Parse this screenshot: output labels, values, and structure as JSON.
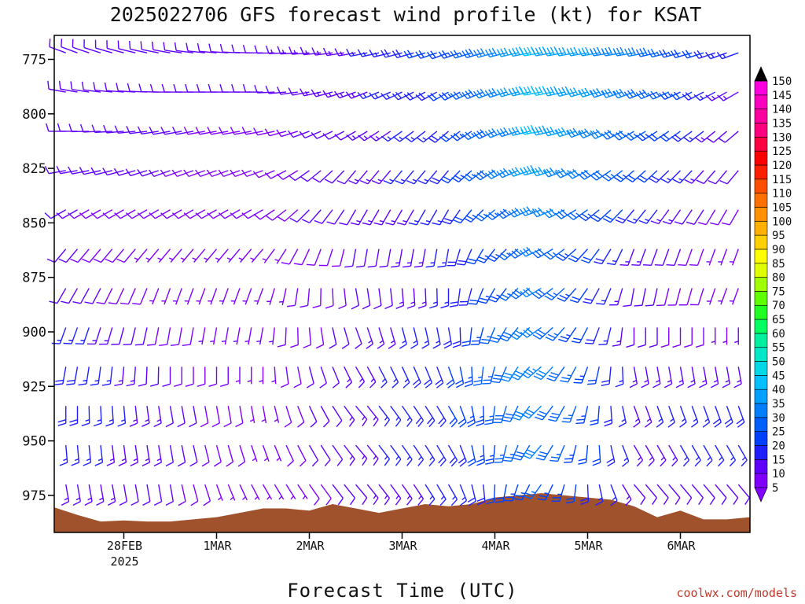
{
  "chart_data": {
    "type": "wind-barb",
    "title": "2025022706 GFS forecast wind profile (kt) for KSAT",
    "xlabel": "Forecast Time (UTC)",
    "ylabel": "",
    "y_axis": {
      "unit": "hPa",
      "inverted": true,
      "ylim": [
        764,
        992
      ],
      "ticks": [
        775,
        800,
        825,
        850,
        875,
        900,
        925,
        950,
        975
      ]
    },
    "x_axis": {
      "start": "2025-02-27T06:00Z",
      "end": "2025-03-06T18:00Z",
      "ticks": [
        {
          "date": "2025-02-28",
          "label": "28FEB",
          "sublabel": "2025"
        },
        {
          "date": "2025-03-01",
          "label": "1MAR",
          "sublabel": ""
        },
        {
          "date": "2025-03-02",
          "label": "2MAR",
          "sublabel": ""
        },
        {
          "date": "2025-03-03",
          "label": "3MAR",
          "sublabel": ""
        },
        {
          "date": "2025-03-04",
          "label": "4MAR",
          "sublabel": ""
        },
        {
          "date": "2025-03-05",
          "label": "5MAR",
          "sublabel": ""
        },
        {
          "date": "2025-03-06",
          "label": "6MAR",
          "sublabel": ""
        }
      ]
    },
    "colorbar": {
      "unit": "kt",
      "levels": [
        5,
        10,
        15,
        20,
        25,
        30,
        35,
        40,
        45,
        50,
        55,
        60,
        65,
        70,
        75,
        80,
        85,
        90,
        95,
        100,
        105,
        110,
        115,
        120,
        125,
        130,
        135,
        140,
        145,
        150
      ],
      "colors": [
        "#8000ff",
        "#6000ff",
        "#2020ff",
        "#0040ff",
        "#0060ff",
        "#0080ff",
        "#00a0ff",
        "#00c0ff",
        "#00d8e8",
        "#00e8c8",
        "#00f0a0",
        "#00ff60",
        "#20ff20",
        "#60ff00",
        "#a0ff00",
        "#e0ff00",
        "#ffff00",
        "#ffd000",
        "#ffb000",
        "#ff9000",
        "#ff7000",
        "#ff5000",
        "#ff2000",
        "#ff0000",
        "#ff0040",
        "#ff0080",
        "#ff00a0",
        "#ff00c0",
        "#ff00e0",
        "#ff00ff"
      ]
    },
    "profile": {
      "levels_hPa": [
        772,
        790,
        808,
        826,
        844,
        862,
        880,
        898,
        916,
        934,
        952,
        970
      ],
      "days": [
        {
          "date": "2025-02-27T12:00Z",
          "speeds": [
            12,
            12,
            11,
            11,
            10,
            10,
            12,
            16,
            18,
            18,
            16,
            14
          ],
          "dirs": [
            290,
            280,
            270,
            260,
            240,
            220,
            210,
            200,
            190,
            180,
            175,
            170
          ]
        },
        {
          "date": "2025-02-28T12:00Z",
          "speeds": [
            12,
            12,
            11,
            10,
            8,
            6,
            6,
            8,
            10,
            12,
            12,
            10
          ],
          "dirs": [
            280,
            270,
            260,
            250,
            240,
            220,
            200,
            190,
            180,
            170,
            170,
            170
          ]
        },
        {
          "date": "2025-03-01T12:00Z",
          "speeds": [
            12,
            10,
            8,
            8,
            8,
            6,
            6,
            6,
            6,
            6,
            6,
            4
          ],
          "dirs": [
            270,
            270,
            260,
            250,
            240,
            220,
            200,
            190,
            180,
            170,
            160,
            150
          ]
        },
        {
          "date": "2025-03-02T12:00Z",
          "speeds": [
            14,
            14,
            12,
            12,
            12,
            10,
            10,
            12,
            14,
            14,
            14,
            12
          ],
          "dirs": [
            260,
            250,
            240,
            220,
            210,
            190,
            170,
            160,
            150,
            140,
            140,
            140
          ]
        },
        {
          "date": "2025-03-03T12:00Z",
          "speeds": [
            22,
            20,
            18,
            18,
            16,
            16,
            16,
            18,
            20,
            20,
            18,
            16
          ],
          "dirs": [
            250,
            240,
            230,
            220,
            210,
            190,
            180,
            170,
            160,
            150,
            150,
            150
          ]
        },
        {
          "date": "2025-03-04T12:00Z",
          "speeds": [
            40,
            42,
            40,
            38,
            34,
            30,
            30,
            32,
            34,
            32,
            30,
            26
          ],
          "dirs": [
            260,
            260,
            260,
            255,
            250,
            245,
            240,
            235,
            230,
            225,
            220,
            215
          ]
        },
        {
          "date": "2025-03-05T12:00Z",
          "speeds": [
            32,
            32,
            28,
            24,
            18,
            14,
            12,
            12,
            14,
            14,
            14,
            12
          ],
          "dirs": [
            260,
            250,
            240,
            230,
            220,
            200,
            190,
            180,
            170,
            160,
            150,
            140
          ]
        },
        {
          "date": "2025-03-06T12:00Z",
          "speeds": [
            16,
            14,
            12,
            10,
            8,
            6,
            6,
            6,
            14,
            18,
            16,
            12
          ],
          "dirs": [
            250,
            240,
            230,
            220,
            210,
            200,
            200,
            180,
            170,
            160,
            150,
            140
          ]
        }
      ]
    },
    "surface_pressure_hPa": [
      [
        "2025-02-27T06:00Z",
        980.5
      ],
      [
        "2025-02-27T12:00Z",
        984
      ],
      [
        "2025-02-27T18:00Z",
        987
      ],
      [
        "2025-02-28T00:00Z",
        986.5
      ],
      [
        "2025-02-28T06:00Z",
        987
      ],
      [
        "2025-02-28T12:00Z",
        987
      ],
      [
        "2025-02-28T18:00Z",
        986
      ],
      [
        "2025-03-01T00:00Z",
        985
      ],
      [
        "2025-03-01T06:00Z",
        983
      ],
      [
        "2025-03-01T12:00Z",
        981
      ],
      [
        "2025-03-01T18:00Z",
        981
      ],
      [
        "2025-03-02T00:00Z",
        982
      ],
      [
        "2025-03-02T06:00Z",
        979
      ],
      [
        "2025-03-02T12:00Z",
        981
      ],
      [
        "2025-03-02T18:00Z",
        983
      ],
      [
        "2025-03-03T00:00Z",
        981
      ],
      [
        "2025-03-03T06:00Z",
        979
      ],
      [
        "2025-03-03T12:00Z",
        980
      ],
      [
        "2025-03-03T18:00Z",
        979
      ],
      [
        "2025-03-04T00:00Z",
        976
      ],
      [
        "2025-03-04T06:00Z",
        975
      ],
      [
        "2025-03-04T12:00Z",
        974
      ],
      [
        "2025-03-04T18:00Z",
        975
      ],
      [
        "2025-03-05T00:00Z",
        976
      ],
      [
        "2025-03-05T06:00Z",
        977
      ],
      [
        "2025-03-05T12:00Z",
        980
      ],
      [
        "2025-03-05T18:00Z",
        985
      ],
      [
        "2025-03-06T00:00Z",
        982
      ],
      [
        "2025-03-06T06:00Z",
        986
      ],
      [
        "2025-03-06T12:00Z",
        986
      ],
      [
        "2025-03-06T18:00Z",
        985
      ]
    ],
    "surface_color": "#a0522d"
  },
  "credit": "coolwx.com/models"
}
